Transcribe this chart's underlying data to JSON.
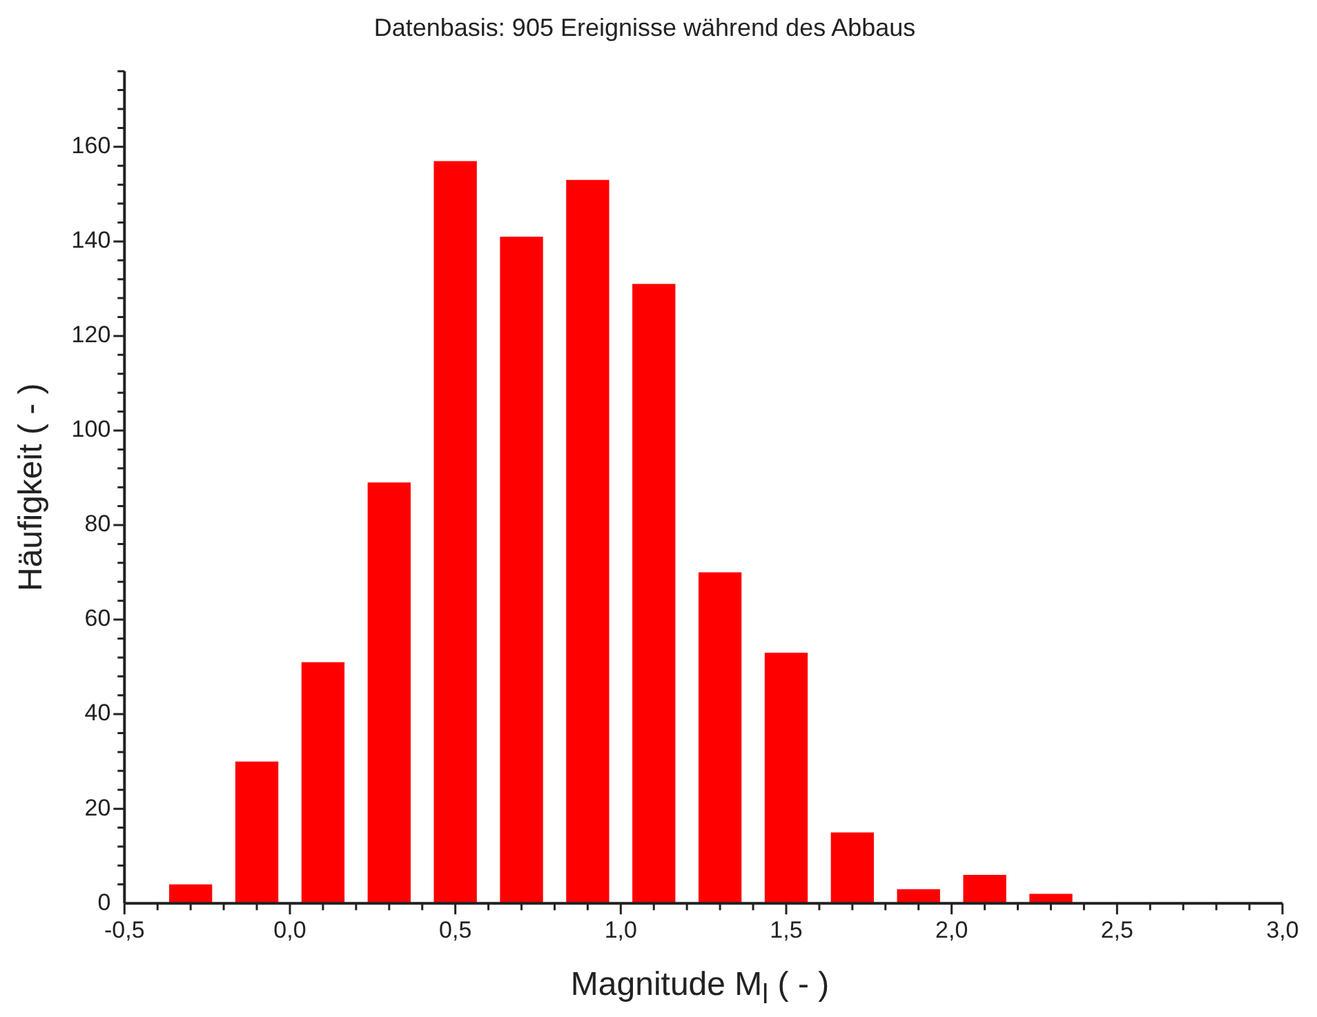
{
  "chart_data": {
    "type": "histogram",
    "title": "Datenbasis: 905 Ereignisse während des Abbaus",
    "xlabel": "Magnitude M$_{l}$ ( - )",
    "ylabel": "Häufigkeit ( - )",
    "bins": [
      -0.4,
      -0.2,
      0.0,
      0.2,
      0.4,
      0.6,
      0.8,
      1.0,
      1.2,
      1.4,
      1.6,
      1.8,
      2.0,
      2.2,
      2.4
    ],
    "values": [
      4,
      30,
      51,
      89,
      157,
      141,
      153,
      131,
      70,
      53,
      15,
      3,
      6,
      2
    ],
    "color": "#ff0000",
    "xlim": [
      -0.5,
      3.0
    ],
    "xticks": [
      {
        "value": -0.5,
        "label": "-0,5"
      },
      {
        "value": -0.4,
        "label": null
      },
      {
        "value": -0.3,
        "label": null
      },
      {
        "value": -0.2,
        "label": null
      },
      {
        "value": -0.1,
        "label": null
      },
      {
        "value": 0,
        "label": "0,0"
      },
      {
        "value": 0.1,
        "label": null
      },
      {
        "value": 0.2,
        "label": null
      },
      {
        "value": 0.3,
        "label": null
      },
      {
        "value": 0.4,
        "label": null
      },
      {
        "value": 0.5,
        "label": "0,5"
      },
      {
        "value": 0.6,
        "label": null
      },
      {
        "value": 0.7,
        "label": null
      },
      {
        "value": 0.8,
        "label": null
      },
      {
        "value": 0.9,
        "label": null
      },
      {
        "value": 1.0,
        "label": "1,0"
      },
      {
        "value": 1.1,
        "label": null
      },
      {
        "value": 1.2,
        "label": null
      },
      {
        "value": 1.3,
        "label": null
      },
      {
        "value": 1.4,
        "label": null
      },
      {
        "value": 1.5,
        "label": "1,5"
      },
      {
        "value": 1.6,
        "label": null
      },
      {
        "value": 1.7,
        "label": null
      },
      {
        "value": 1.8,
        "label": null
      },
      {
        "value": 1.9,
        "label": null
      },
      {
        "value": 2.0,
        "label": "2,0"
      },
      {
        "value": 2.1,
        "label": null
      },
      {
        "value": 2.2,
        "label": null
      },
      {
        "value": 2.3,
        "label": null
      },
      {
        "value": 2.4,
        "label": null
      },
      {
        "value": 2.5,
        "label": "2,5"
      },
      {
        "value": 2.6,
        "label": null
      },
      {
        "value": 2.7,
        "label": null
      },
      {
        "value": 2.8,
        "label": null
      },
      {
        "value": 2.9,
        "label": null
      },
      {
        "value": 3.0,
        "label": "3,0"
      }
    ],
    "ylim": [
      0,
      176
    ],
    "yticks": [
      0,
      {
        "value": 4,
        "label": null
      },
      {
        "value": 8,
        "label": null
      },
      {
        "value": 12,
        "label": null
      },
      {
        "value": 16,
        "label": null
      },
      20,
      {
        "value": 24,
        "label": null
      },
      {
        "value": 28,
        "label": null
      },
      {
        "value": 32,
        "label": null
      },
      {
        "value": 36,
        "label": null
      },
      40,
      {
        "value": 44,
        "label": null
      },
      {
        "value": 48,
        "label": null
      },
      {
        "value": 52,
        "label": null
      },
      {
        "value": 56,
        "label": null
      },
      60,
      {
        "value": 64,
        "label": null
      },
      {
        "value": 68,
        "label": null
      },
      {
        "value": 72,
        "label": null
      },
      {
        "value": 76,
        "label": null
      },
      80,
      {
        "value": 84,
        "label": null
      },
      {
        "value": 88,
        "label": null
      },
      {
        "value": 92,
        "label": null
      },
      {
        "value": 96,
        "label": null
      },
      100,
      {
        "value": 104,
        "label": null
      },
      {
        "value": 108,
        "label": null
      },
      {
        "value": 112,
        "label": null
      },
      {
        "value": 116,
        "label": null
      },
      120,
      {
        "value": 124,
        "label": null
      },
      {
        "value": 128,
        "label": null
      },
      {
        "value": 132,
        "label": null
      },
      {
        "value": 136,
        "label": null
      },
      140,
      {
        "value": 144,
        "label": null
      },
      {
        "value": 148,
        "label": null
      },
      {
        "value": 152,
        "label": null
      },
      {
        "value": 156,
        "label": null
      },
      160,
      {
        "value": 164,
        "label": null
      },
      {
        "value": 168,
        "label": null
      },
      {
        "value": 172,
        "label": null
      },
      {
        "value": 176,
        "label": null
      }
    ]
  }
}
